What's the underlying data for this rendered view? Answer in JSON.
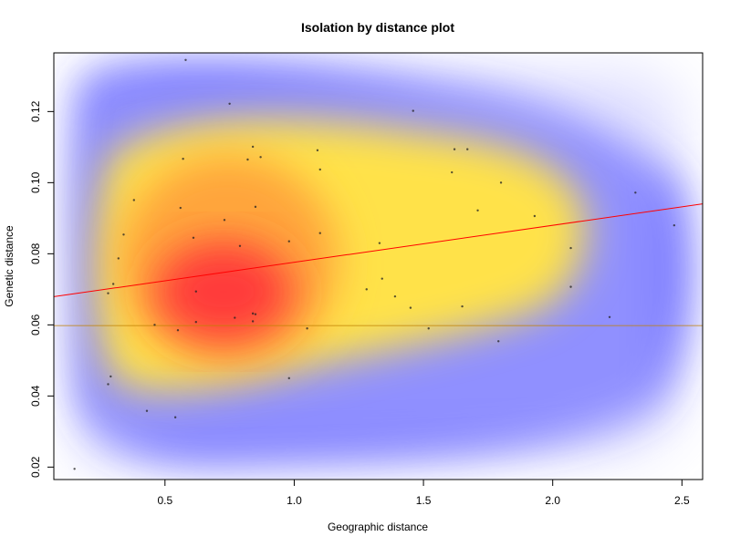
{
  "chart_data": {
    "type": "scatter",
    "title": "Isolation by distance plot",
    "xlabel": "Geographic distance",
    "ylabel": "Genetic distance",
    "xlim": [
      0.07,
      2.58
    ],
    "ylim": [
      0.0165,
      0.1365
    ],
    "xticks": [
      0.5,
      1.0,
      1.5,
      2.0,
      2.5
    ],
    "xtick_labels": [
      "0.5",
      "1.0",
      "1.5",
      "2.0",
      "2.5"
    ],
    "yticks": [
      0.02,
      0.04,
      0.06,
      0.08,
      0.1,
      0.12
    ],
    "ytick_labels": [
      "0.02",
      "0.04",
      "0.06",
      "0.08",
      "0.10",
      "0.12"
    ],
    "background": "2D kernel density estimate (white to blue to yellow to red)",
    "density_colors": [
      "#ffffff",
      "#3a3aff",
      "#ffe24a",
      "#ff3b3b"
    ],
    "regression_line": {
      "color": "#ff0000",
      "intercept": 0.0672,
      "slope": 0.0104
    },
    "reference_line": {
      "color": "#c08000",
      "y": 0.0598
    },
    "points": {
      "x": [
        0.15,
        0.58,
        0.75,
        1.46,
        0.57,
        0.84,
        0.82,
        0.87,
        1.09,
        1.1,
        1.62,
        1.67,
        1.61,
        0.38,
        0.56,
        0.85,
        0.73,
        1.8,
        0.34,
        0.61,
        0.79,
        0.98,
        1.1,
        1.33,
        1.71,
        2.32,
        2.47,
        1.93,
        0.32,
        0.3,
        0.28,
        0.62,
        1.34,
        1.28,
        1.39,
        1.45,
        1.65,
        0.62,
        0.84,
        0.85,
        0.77,
        0.84,
        0.46,
        0.55,
        1.05,
        1.52,
        1.79,
        2.07,
        2.07,
        2.22,
        0.29,
        0.28,
        0.98,
        0.43,
        0.54
      ],
      "y": [
        0.0195,
        0.1345,
        0.1222,
        0.1202,
        0.1067,
        0.1101,
        0.1065,
        0.1072,
        0.1091,
        0.1037,
        0.1094,
        0.1094,
        0.1029,
        0.0951,
        0.0929,
        0.0932,
        0.0895,
        0.1,
        0.0854,
        0.0845,
        0.0822,
        0.0835,
        0.0858,
        0.083,
        0.0922,
        0.0972,
        0.088,
        0.0906,
        0.0787,
        0.0715,
        0.0689,
        0.0694,
        0.073,
        0.07,
        0.068,
        0.0648,
        0.0652,
        0.0608,
        0.0632,
        0.063,
        0.062,
        0.061,
        0.06,
        0.0585,
        0.059,
        0.059,
        0.0554,
        0.0816,
        0.0707,
        0.0622,
        0.0455,
        0.0433,
        0.045,
        0.0358,
        0.034
      ]
    },
    "grid": false,
    "legend": "none"
  }
}
